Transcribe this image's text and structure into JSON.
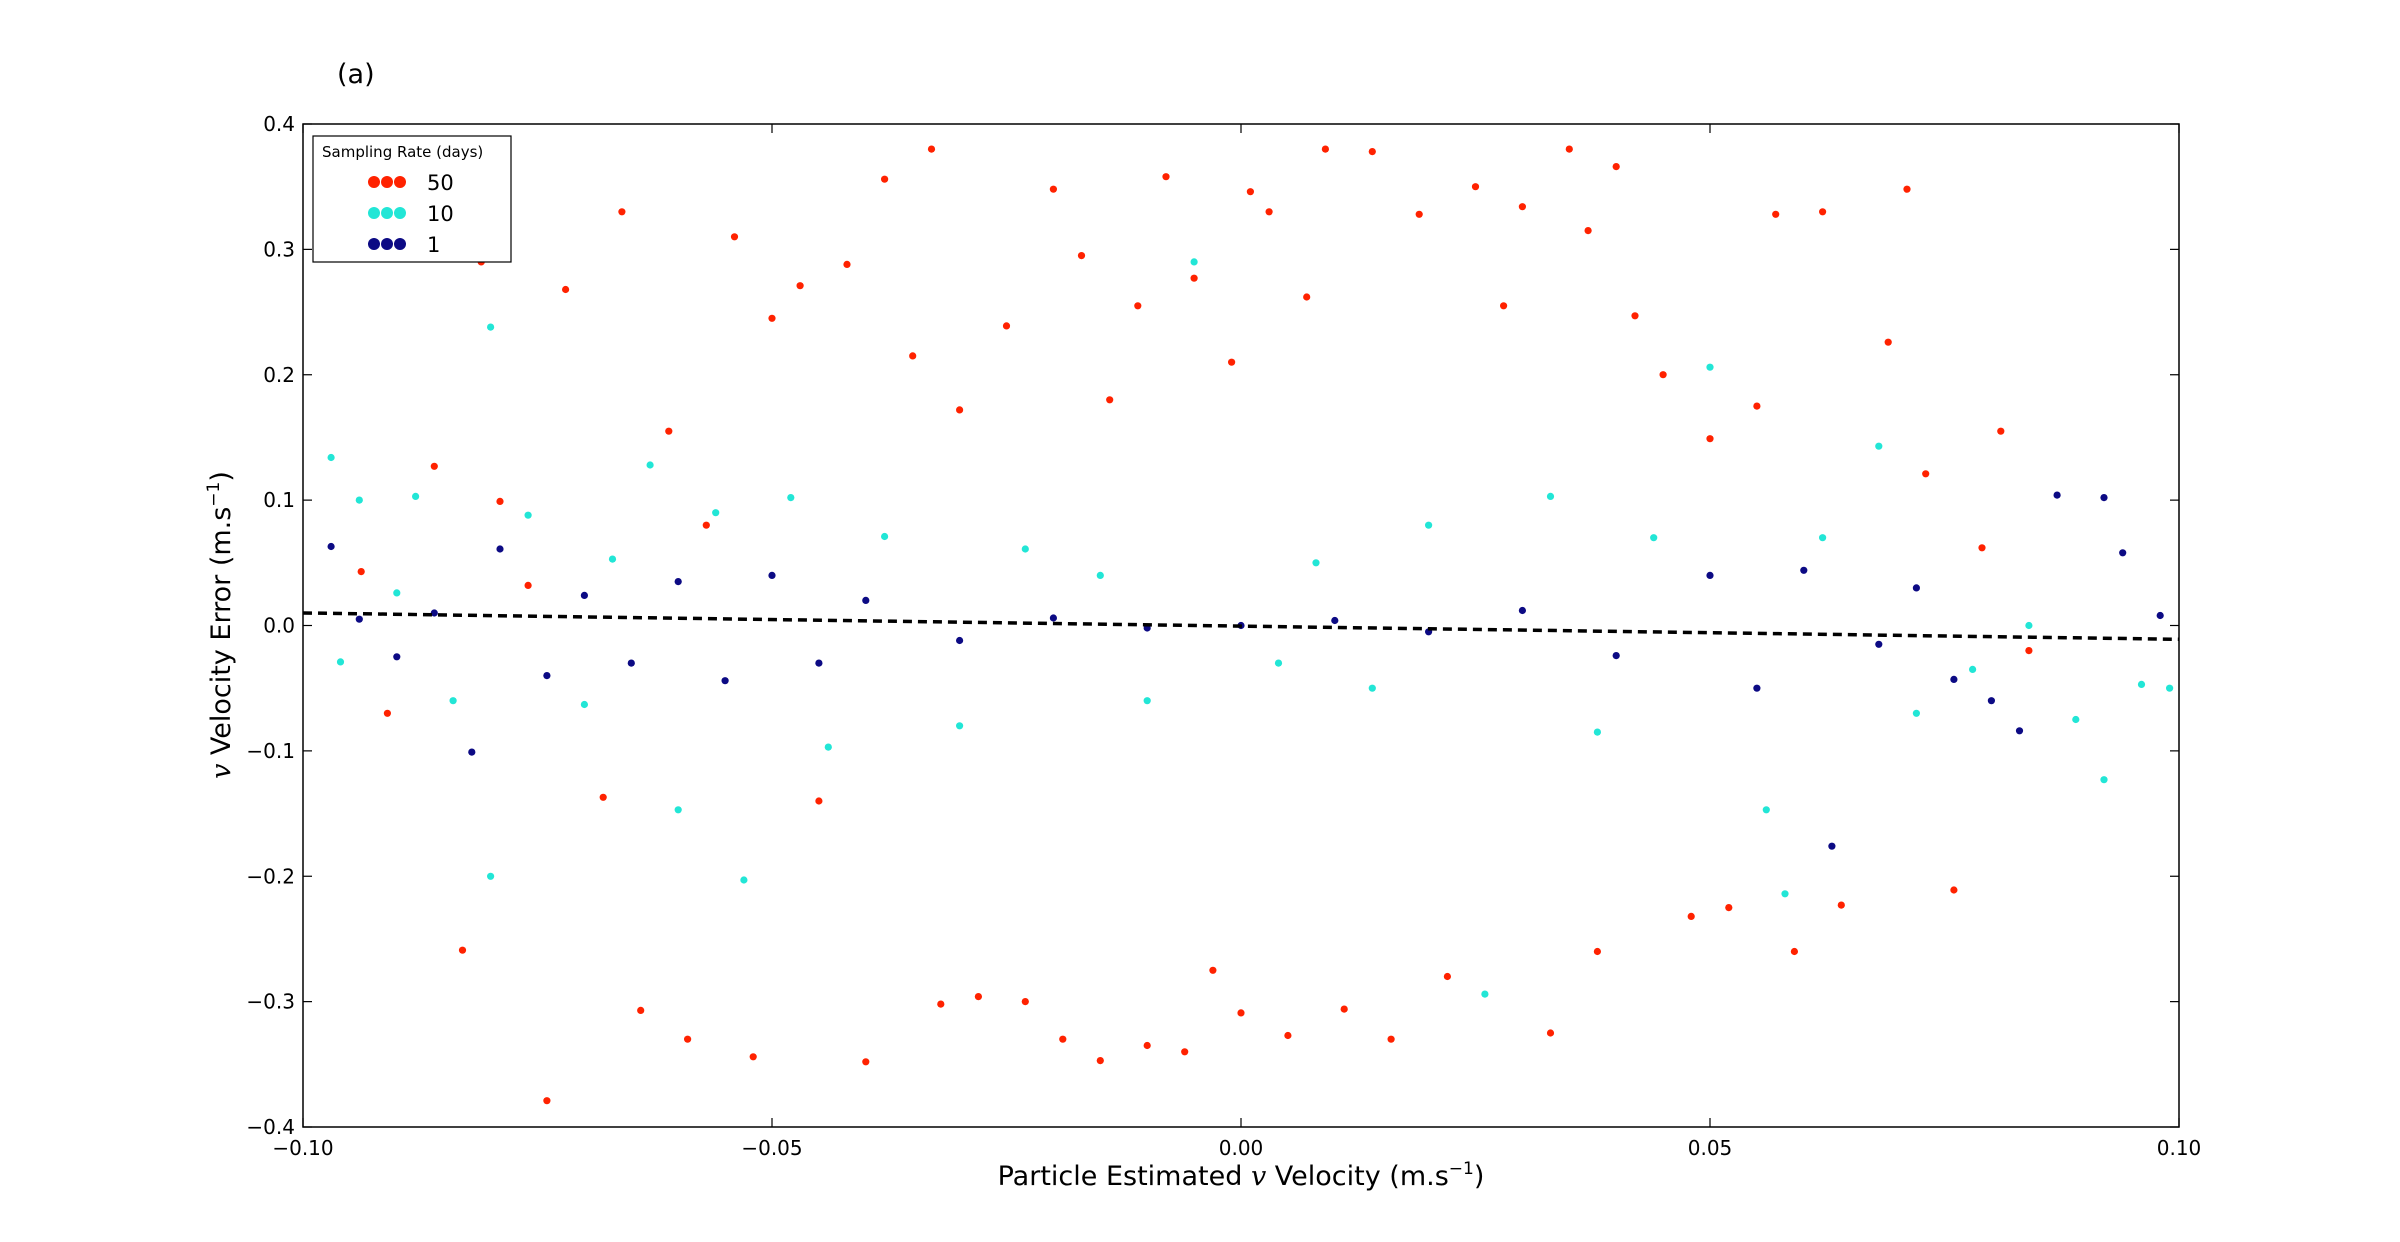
{
  "panel_label": "(a)",
  "colors": {
    "rate_50": "#ff2200",
    "rate_10": "#22e6d6",
    "rate_1": "#0c0a84",
    "fit_line": "#000000",
    "background": "#ffffff"
  },
  "chart_data": {
    "type": "scatter",
    "title": "",
    "xlabel": {
      "prefix": "Particle Estimated ",
      "variable": "v",
      "middle": " Velocity (m.s",
      "exponent": "−1",
      "suffix": ")"
    },
    "ylabel": {
      "prefix": "",
      "variable": "v",
      "middle": " Velocity Error (m.s",
      "exponent": "−1",
      "suffix": ")"
    },
    "xlim": [
      -0.1,
      0.1
    ],
    "ylim": [
      -0.4,
      0.4
    ],
    "xticks": [
      -0.1,
      -0.05,
      0.0,
      0.05,
      0.1
    ],
    "xtick_labels": [
      "−0.10",
      "−0.05",
      "0.00",
      "0.05",
      "0.10"
    ],
    "yticks": [
      -0.4,
      -0.3,
      -0.2,
      -0.1,
      0.0,
      0.1,
      0.2,
      0.3,
      0.4
    ],
    "ytick_labels": [
      "−0.4",
      "−0.3",
      "−0.2",
      "−0.1",
      "0.0",
      "0.1",
      "0.2",
      "0.3",
      "0.4"
    ],
    "grid": false,
    "legend": {
      "title": "Sampling Rate (days)",
      "placement": "top-left",
      "entries": [
        "50",
        "10",
        "1"
      ]
    },
    "series": [
      {
        "name": "50",
        "color_key": "rate_50",
        "description_of_distribution": "broad elliptical cloud centered near (0, 0), error magnitude up to about ±0.38, with a narrow empty gap around error 0 that closes toward |x| = 0.03",
        "points": [
          [
            -0.0938,
            0.043
          ],
          [
            -0.091,
            -0.07
          ],
          [
            -0.086,
            0.127
          ],
          [
            -0.083,
            -0.259
          ],
          [
            -0.081,
            0.29
          ],
          [
            -0.079,
            0.099
          ],
          [
            -0.076,
            0.032
          ],
          [
            -0.074,
            -0.379
          ],
          [
            -0.072,
            0.268
          ],
          [
            -0.068,
            -0.137
          ],
          [
            -0.066,
            0.33
          ],
          [
            -0.064,
            -0.307
          ],
          [
            -0.061,
            0.155
          ],
          [
            -0.059,
            -0.33
          ],
          [
            -0.057,
            0.08
          ],
          [
            -0.054,
            0.31
          ],
          [
            -0.052,
            -0.344
          ],
          [
            -0.05,
            0.245
          ],
          [
            -0.047,
            0.271
          ],
          [
            -0.045,
            -0.14
          ],
          [
            -0.042,
            0.288
          ],
          [
            -0.04,
            -0.348
          ],
          [
            -0.038,
            0.356
          ],
          [
            -0.035,
            0.215
          ],
          [
            -0.033,
            0.38
          ],
          [
            -0.032,
            -0.302
          ],
          [
            -0.03,
            0.172
          ],
          [
            -0.028,
            -0.296
          ],
          [
            -0.025,
            0.239
          ],
          [
            -0.023,
            -0.3
          ],
          [
            -0.02,
            0.348
          ],
          [
            -0.019,
            -0.33
          ],
          [
            -0.017,
            0.295
          ],
          [
            -0.015,
            -0.347
          ],
          [
            -0.014,
            0.18
          ],
          [
            -0.011,
            0.255
          ],
          [
            -0.01,
            -0.335
          ],
          [
            -0.008,
            0.358
          ],
          [
            -0.006,
            -0.34
          ],
          [
            -0.005,
            0.277
          ],
          [
            -0.003,
            -0.275
          ],
          [
            -0.001,
            0.21
          ],
          [
            0.0,
            -0.309
          ],
          [
            0.001,
            0.346
          ],
          [
            0.003,
            0.33
          ],
          [
            0.005,
            -0.327
          ],
          [
            0.007,
            0.262
          ],
          [
            0.009,
            0.38
          ],
          [
            0.011,
            -0.306
          ],
          [
            0.014,
            0.378
          ],
          [
            0.016,
            -0.33
          ],
          [
            0.019,
            0.328
          ],
          [
            0.022,
            -0.28
          ],
          [
            0.025,
            0.35
          ],
          [
            0.028,
            0.255
          ],
          [
            0.03,
            0.334
          ],
          [
            0.033,
            -0.325
          ],
          [
            0.035,
            0.38
          ],
          [
            0.037,
            0.315
          ],
          [
            0.038,
            -0.26
          ],
          [
            0.04,
            0.366
          ],
          [
            0.042,
            0.247
          ],
          [
            0.045,
            0.2
          ],
          [
            0.048,
            -0.232
          ],
          [
            0.05,
            0.149
          ],
          [
            0.052,
            -0.225
          ],
          [
            0.055,
            0.175
          ],
          [
            0.057,
            0.328
          ],
          [
            0.059,
            -0.26
          ],
          [
            0.062,
            0.33
          ],
          [
            0.064,
            -0.223
          ],
          [
            0.069,
            0.226
          ],
          [
            0.071,
            0.348
          ],
          [
            0.073,
            0.121
          ],
          [
            0.076,
            -0.211
          ],
          [
            0.079,
            0.062
          ],
          [
            0.081,
            0.155
          ],
          [
            0.084,
            -0.02
          ]
        ]
      },
      {
        "name": "10",
        "color_key": "rate_10",
        "description_of_distribution": "band from x = −0.10 to 0.10 within roughly ±0.1 error, densest inside |error| < 0.06, gap around error 0 near x = 0",
        "points": [
          [
            -0.097,
            0.134
          ],
          [
            -0.096,
            -0.029
          ],
          [
            -0.094,
            0.1
          ],
          [
            -0.09,
            0.026
          ],
          [
            -0.088,
            0.103
          ],
          [
            -0.084,
            -0.06
          ],
          [
            -0.08,
            0.238
          ],
          [
            -0.08,
            -0.2
          ],
          [
            -0.076,
            0.088
          ],
          [
            -0.07,
            -0.063
          ],
          [
            -0.067,
            0.053
          ],
          [
            -0.063,
            0.128
          ],
          [
            -0.06,
            -0.147
          ],
          [
            -0.056,
            0.09
          ],
          [
            -0.053,
            -0.203
          ],
          [
            -0.048,
            0.102
          ],
          [
            -0.044,
            -0.097
          ],
          [
            -0.038,
            0.071
          ],
          [
            -0.03,
            -0.08
          ],
          [
            -0.023,
            0.061
          ],
          [
            -0.015,
            0.04
          ],
          [
            -0.01,
            -0.06
          ],
          [
            -0.005,
            0.29
          ],
          [
            0.004,
            -0.03
          ],
          [
            0.008,
            0.05
          ],
          [
            0.014,
            -0.05
          ],
          [
            0.02,
            0.08
          ],
          [
            0.026,
            -0.294
          ],
          [
            0.033,
            0.103
          ],
          [
            0.038,
            -0.085
          ],
          [
            0.044,
            0.07
          ],
          [
            0.05,
            0.206
          ],
          [
            0.056,
            -0.147
          ],
          [
            0.058,
            -0.214
          ],
          [
            0.062,
            0.07
          ],
          [
            0.068,
            0.143
          ],
          [
            0.072,
            -0.07
          ],
          [
            0.078,
            -0.035
          ],
          [
            0.084,
            0.0
          ],
          [
            0.089,
            -0.075
          ],
          [
            0.092,
            -0.123
          ],
          [
            0.096,
            -0.047
          ],
          [
            0.099,
            -0.05
          ]
        ]
      },
      {
        "name": "1",
        "color_key": "rate_1",
        "description_of_distribution": "tight band hugging the fit line; width about ±0.05 at |x| = 0.05–0.10, narrowing to about ±0.02 at x = 0 (bow-tie shape)",
        "points": [
          [
            -0.097,
            0.063
          ],
          [
            -0.094,
            0.005
          ],
          [
            -0.09,
            -0.025
          ],
          [
            -0.086,
            0.01
          ],
          [
            -0.082,
            -0.101
          ],
          [
            -0.079,
            0.061
          ],
          [
            -0.074,
            -0.04
          ],
          [
            -0.07,
            0.024
          ],
          [
            -0.065,
            -0.03
          ],
          [
            -0.06,
            0.035
          ],
          [
            -0.055,
            -0.044
          ],
          [
            -0.05,
            0.04
          ],
          [
            -0.045,
            -0.03
          ],
          [
            -0.04,
            0.02
          ],
          [
            -0.03,
            -0.012
          ],
          [
            -0.02,
            0.006
          ],
          [
            -0.01,
            -0.002
          ],
          [
            0.0,
            0.0
          ],
          [
            0.01,
            0.004
          ],
          [
            0.02,
            -0.005
          ],
          [
            0.03,
            0.012
          ],
          [
            0.04,
            -0.024
          ],
          [
            0.05,
            0.04
          ],
          [
            0.055,
            -0.05
          ],
          [
            0.06,
            0.044
          ],
          [
            0.063,
            -0.176
          ],
          [
            0.068,
            -0.015
          ],
          [
            0.072,
            0.03
          ],
          [
            0.076,
            -0.043
          ],
          [
            0.08,
            -0.06
          ],
          [
            0.083,
            -0.084
          ],
          [
            0.087,
            0.104
          ],
          [
            0.092,
            0.102
          ],
          [
            0.094,
            0.058
          ],
          [
            0.098,
            0.008
          ]
        ]
      }
    ],
    "fit_line": {
      "style": "dashed",
      "color_key": "fit_line",
      "x": [
        -0.1,
        0.1
      ],
      "y": [
        0.01,
        -0.011
      ]
    }
  }
}
